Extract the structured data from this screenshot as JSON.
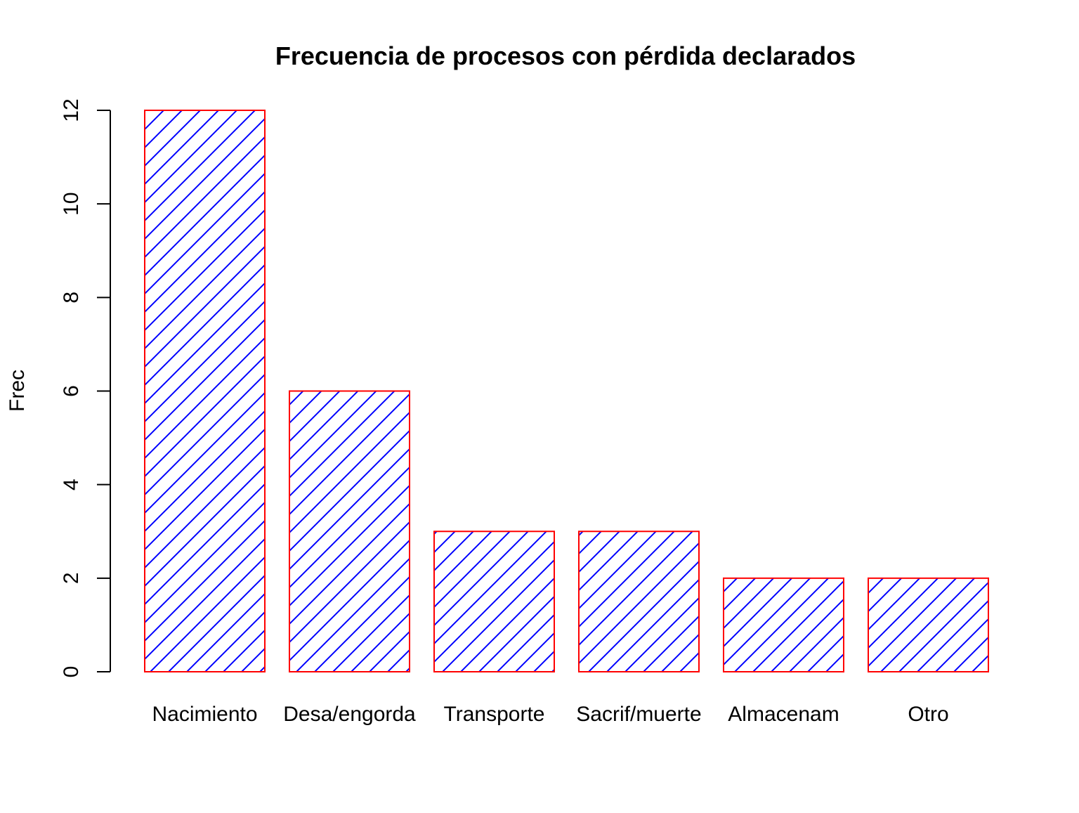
{
  "chart_data": {
    "type": "bar",
    "title": "Frecuencia de procesos con pérdida declarados",
    "xlabel": "",
    "ylabel": "Frec",
    "categories": [
      "Nacimiento",
      "Desa/engorda",
      "Transporte",
      "Sacrif/muerte",
      "Almacenam",
      "Otro"
    ],
    "values": [
      12,
      6,
      3,
      3,
      2,
      2
    ],
    "ylim": [
      0,
      12
    ],
    "yticks": [
      "0",
      "2",
      "4",
      "6",
      "8",
      "10",
      "12"
    ],
    "grid": false,
    "fill_pattern": "diagonal-hatch",
    "colors": {
      "hatch": "#0000ff",
      "border": "#ff0000",
      "axis": "#000000",
      "background": "#ffffff"
    }
  }
}
